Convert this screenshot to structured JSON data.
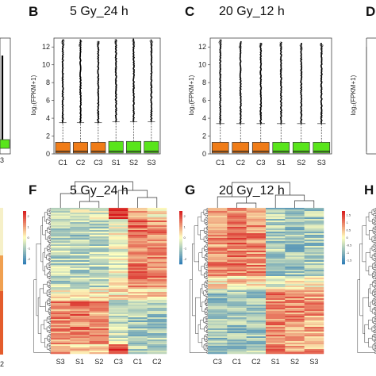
{
  "panels": {
    "A": {
      "letter": ""
    },
    "B": {
      "letter": "B",
      "title": "5 Gy_24 h"
    },
    "C": {
      "letter": "C",
      "title": "20 Gy_12 h"
    },
    "D": {
      "letter": "D"
    },
    "E": {
      "letter": ""
    },
    "F": {
      "letter": "F",
      "title": "5 Gy_24 h"
    },
    "G": {
      "letter": "G",
      "title": "20 Gy_12 h"
    },
    "H": {
      "letter": "H"
    }
  },
  "colors": {
    "control_box": "#f07c18",
    "sample_box": "#59e51b",
    "heat_low": "#2c7bb6",
    "heat_mid": "#ffffbf",
    "heat_high": "#d7191c"
  },
  "chart_data": [
    {
      "type": "box",
      "panel": "B",
      "title": "5 Gy_24 h",
      "ylabel": "log2(FPKM+1)",
      "ylim": [
        0,
        13
      ],
      "yticks": [
        0,
        2,
        4,
        6,
        8,
        10,
        12
      ],
      "categories": [
        "C1",
        "C2",
        "C3",
        "S1",
        "S2",
        "S3"
      ],
      "boxes": [
        {
          "q1": 0.1,
          "median": 0.3,
          "q3": 1.3,
          "whisker_high": 3.5,
          "outlier_max": 12.8
        },
        {
          "q1": 0.1,
          "median": 0.3,
          "q3": 1.3,
          "whisker_high": 3.5,
          "outlier_max": 12.8
        },
        {
          "q1": 0.1,
          "median": 0.3,
          "q3": 1.3,
          "whisker_high": 3.5,
          "outlier_max": 12.6
        },
        {
          "q1": 0.1,
          "median": 0.3,
          "q3": 1.4,
          "whisker_high": 3.6,
          "outlier_max": 12.8
        },
        {
          "q1": 0.1,
          "median": 0.3,
          "q3": 1.4,
          "whisker_high": 3.6,
          "outlier_max": 12.9
        },
        {
          "q1": 0.1,
          "median": 0.3,
          "q3": 1.4,
          "whisker_high": 3.6,
          "outlier_max": 12.8
        }
      ]
    },
    {
      "type": "box",
      "panel": "C",
      "title": "20 Gy_12 h",
      "ylabel": "log2(FPKM+1)",
      "ylim": [
        0,
        13
      ],
      "yticks": [
        0,
        2,
        4,
        6,
        8,
        10,
        12
      ],
      "categories": [
        "C1",
        "C2",
        "C3",
        "S1",
        "S2",
        "S3"
      ],
      "boxes": [
        {
          "q1": 0.1,
          "median": 0.3,
          "q3": 1.3,
          "whisker_high": 3.4,
          "outlier_max": 12.8
        },
        {
          "q1": 0.1,
          "median": 0.3,
          "q3": 1.3,
          "whisker_high": 3.4,
          "outlier_max": 12.6
        },
        {
          "q1": 0.1,
          "median": 0.3,
          "q3": 1.3,
          "whisker_high": 3.4,
          "outlier_max": 12.4
        },
        {
          "q1": 0.1,
          "median": 0.3,
          "q3": 1.3,
          "whisker_high": 3.4,
          "outlier_max": 12.5
        },
        {
          "q1": 0.1,
          "median": 0.3,
          "q3": 1.3,
          "whisker_high": 3.4,
          "outlier_max": 12.4
        },
        {
          "q1": 0.1,
          "median": 0.3,
          "q3": 1.3,
          "whisker_high": 3.4,
          "outlier_max": 12.4
        }
      ]
    },
    {
      "type": "heatmap",
      "panel": "F",
      "title": "5 Gy_24 h",
      "columns": [
        "S3",
        "S1",
        "S2",
        "C3",
        "C1",
        "C2"
      ],
      "colorbar_ticks": [
        "2",
        "1",
        "0",
        "-1",
        "-2"
      ]
    },
    {
      "type": "heatmap",
      "panel": "G",
      "title": "20 Gy_12 h",
      "columns": [
        "C3",
        "C1",
        "C2",
        "S1",
        "S2",
        "S3"
      ],
      "colorbar_ticks": [
        "2",
        "1",
        "0",
        "-1",
        "-2"
      ]
    },
    {
      "type": "heatmap",
      "panel": "H",
      "colorbar_ticks": [
        "1.5",
        "1",
        "0.5",
        "0",
        "-0.5",
        "-1",
        "-1.5"
      ]
    }
  ]
}
